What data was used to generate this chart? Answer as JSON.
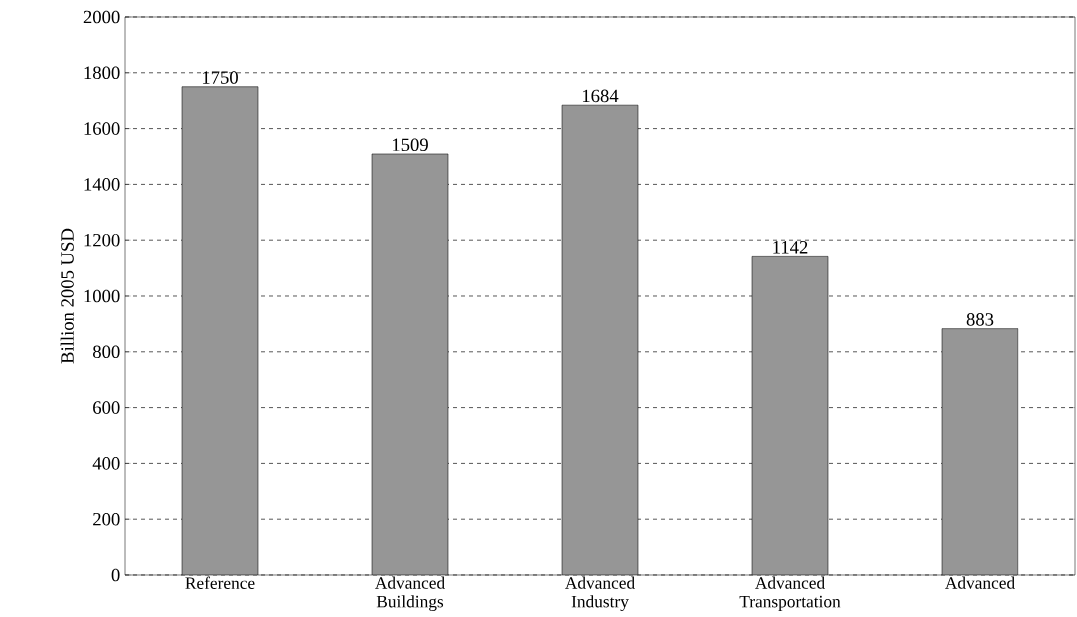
{
  "chart_data": {
    "type": "bar",
    "ylabel": "Billion 2005 USD",
    "categories": [
      "Reference",
      "Advanced Buildings",
      "Advanced Industry",
      "Advanced Transportation",
      "Advanced"
    ],
    "values": [
      1750,
      1509,
      1684,
      1142,
      883
    ],
    "value_labels": [
      "1750",
      "1509",
      "1684",
      "1142",
      "883"
    ],
    "color": "#969696",
    "ylim": [
      0,
      2000
    ],
    "yticks": [
      0,
      200,
      400,
      600,
      800,
      1000,
      1200,
      1400,
      1600,
      1800,
      2000
    ],
    "grid": "y"
  }
}
